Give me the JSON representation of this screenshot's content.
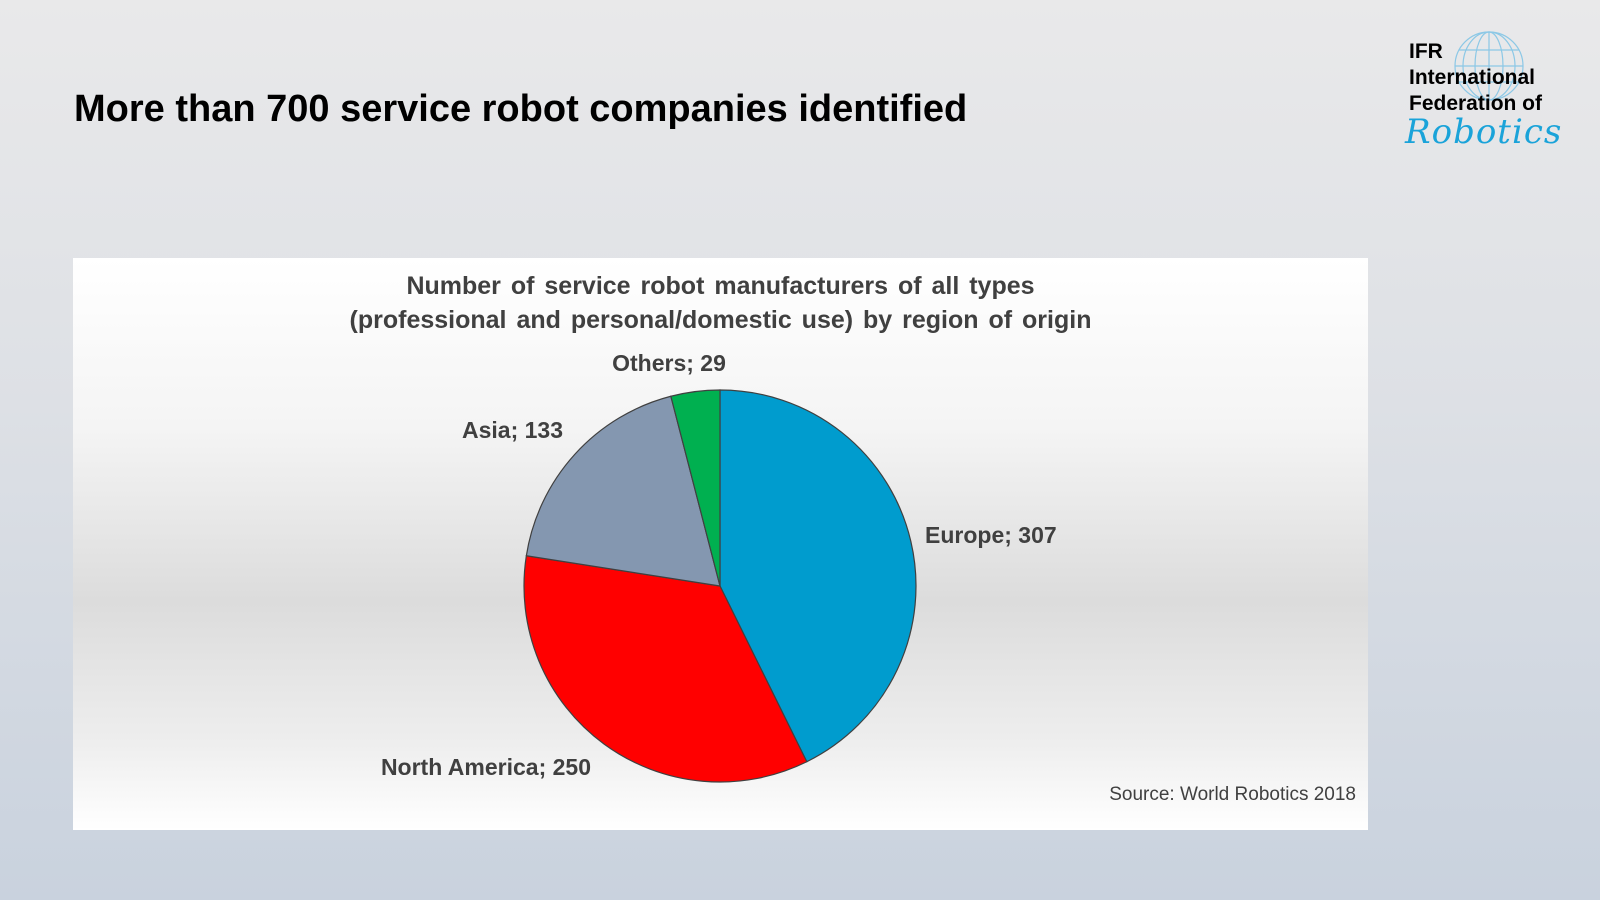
{
  "slide": {
    "title": "More than 700 service robot companies identified"
  },
  "logo": {
    "line1": "IFR",
    "line2": "International",
    "line3": "Federation of",
    "script": "Robotics"
  },
  "chart_data": {
    "type": "pie",
    "title_lines": [
      "Number of service robot manufacturers of all types",
      "(professional and personal/domestic use) by region of origin"
    ],
    "slices": [
      {
        "name": "Europe",
        "value": 307,
        "label": "Europe; 307",
        "color": "#009cce"
      },
      {
        "name": "North America",
        "value": 250,
        "label": "North America; 250",
        "color": "#ff0000"
      },
      {
        "name": "Asia",
        "value": 133,
        "label": "Asia; 133",
        "color": "#8497b0"
      },
      {
        "name": "Others",
        "value": 29,
        "label": "Others; 29",
        "color": "#00b050"
      }
    ],
    "legend": "none",
    "grid": false
  },
  "source": "Source: World Robotics 2018"
}
